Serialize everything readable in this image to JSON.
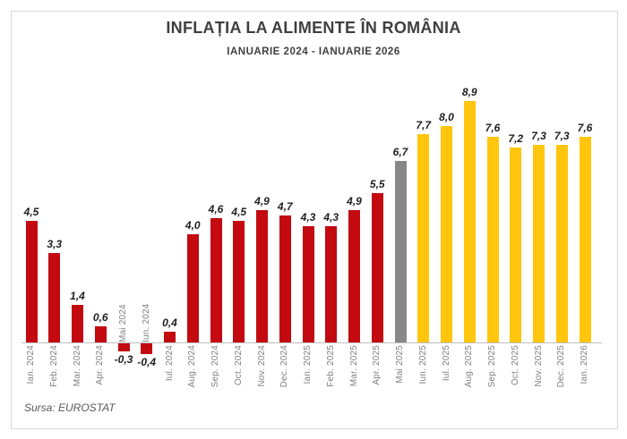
{
  "header": {
    "title": "INFLAȚIA LA ALIMENTE ÎN ROMÂNIA",
    "subtitle": "IANUARIE 2024 - IANUARIE 2026"
  },
  "footer": {
    "source": "Sursa: EUROSTAT"
  },
  "colors": {
    "historical_bar": "#C20A10",
    "latest_bar": "#888888",
    "forecast_bar": "#FFC60D",
    "axis_line": "#BFBFBF",
    "title_text": "#3F3F3F",
    "tick_text": "#808080",
    "value_text": "#1F1F1F"
  },
  "chart_data": {
    "type": "bar",
    "title": "INFLAȚIA LA ALIMENTE ÎN ROMÂNIA",
    "subtitle": "IANUARIE 2024 - IANUARIE 2026",
    "source": "Sursa: EUROSTAT",
    "grid": false,
    "legend": "none",
    "ylim": [
      -0.9,
      9.5
    ],
    "baseline": 0,
    "categories": [
      "Ian. 2024",
      "Feb. 2024",
      "Mar. 2024",
      "Apr. 2024",
      "Mai 2024",
      "Iun. 2024",
      "Iul. 2024",
      "Aug. 2024",
      "Sep. 2024",
      "Oct. 2024",
      "Nov. 2024",
      "Dec. 2024",
      "Ian. 2025",
      "Feb. 2025",
      "Mar. 2025",
      "Apr. 2025",
      "Mai 2025",
      "Iun. 2025",
      "Iul. 2025",
      "Aug. 2025",
      "Sep. 2025",
      "Oct. 2025",
      "Nov. 2025",
      "Dec. 2025",
      "Ian. 2026"
    ],
    "values": [
      4.5,
      3.3,
      1.4,
      0.6,
      -0.3,
      -0.4,
      0.4,
      4.0,
      4.6,
      4.5,
      4.9,
      4.7,
      4.3,
      4.3,
      4.9,
      5.5,
      6.7,
      7.7,
      8.0,
      8.9,
      7.6,
      7.2,
      7.3,
      7.3,
      7.6
    ],
    "value_labels": [
      "4,5",
      "3,3",
      "1,4",
      "0,6",
      "-0,3",
      "-0,4",
      "0,4",
      "4,0",
      "4,6",
      "4,5",
      "4,9",
      "4,7",
      "4,3",
      "4,3",
      "4,9",
      "5,5",
      "6,7",
      "7,7",
      "8,0",
      "8,9",
      "7,6",
      "7,2",
      "7,3",
      "7,3",
      "7,6"
    ],
    "bar_colors": [
      "#C20A10",
      "#C20A10",
      "#C20A10",
      "#C20A10",
      "#C20A10",
      "#C20A10",
      "#C20A10",
      "#C20A10",
      "#C20A10",
      "#C20A10",
      "#C20A10",
      "#C20A10",
      "#C20A10",
      "#C20A10",
      "#C20A10",
      "#C20A10",
      "#888888",
      "#FFC60D",
      "#FFC60D",
      "#FFC60D",
      "#FFC60D",
      "#FFC60D",
      "#FFC60D",
      "#FFC60D",
      "#FFC60D"
    ]
  }
}
